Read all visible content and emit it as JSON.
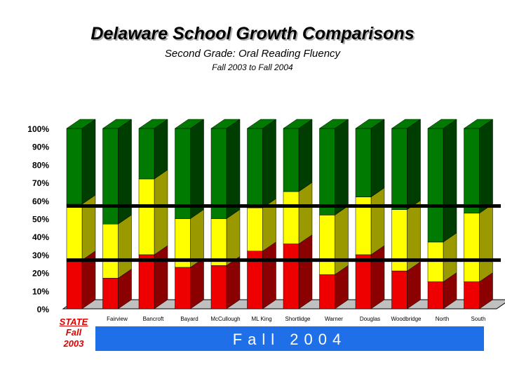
{
  "header": {
    "title": "Delaware School Growth Comparisons",
    "subtitle": "Second Grade: Oral Reading Fluency",
    "period": "Fall 2003 to Fall 2004"
  },
  "state_label": {
    "name": "STATE",
    "line1": "Fall",
    "line2": "2003"
  },
  "banner": {
    "text": "Fall 2004"
  },
  "colors": {
    "red_front": "#ee0000",
    "red_side": "#8b0000",
    "yellow_front": "#ffff00",
    "yellow_side": "#9a9a00",
    "green_front": "#007a00",
    "green_side": "#003d00",
    "floor": "#c0c0c0"
  },
  "chart_data": {
    "type": "bar",
    "stacked": true,
    "categories": [
      "",
      "Fairview",
      "Bancroft",
      "Bayard",
      "McCullough",
      "ML King",
      "Shortlidge",
      "Warner",
      "Douglas",
      "Woodbridge",
      "North",
      "South"
    ],
    "series": [
      {
        "values": [
          27,
          17,
          30,
          23,
          24,
          32,
          36,
          19,
          30,
          21,
          15,
          15
        ]
      },
      {
        "values": [
          31,
          30,
          42,
          27,
          26,
          24,
          29,
          33,
          32,
          34,
          22,
          38
        ]
      },
      {
        "values": [
          42,
          53,
          28,
          50,
          50,
          44,
          35,
          48,
          38,
          45,
          63,
          47
        ]
      }
    ],
    "yticks": [
      "0%",
      "10%",
      "20%",
      "30%",
      "40%",
      "50%",
      "60%",
      "70%",
      "80%",
      "90%",
      "100%"
    ],
    "ylim": [
      0,
      100
    ],
    "reference_lines": [
      57,
      27
    ],
    "grid": false,
    "legend": "none"
  }
}
